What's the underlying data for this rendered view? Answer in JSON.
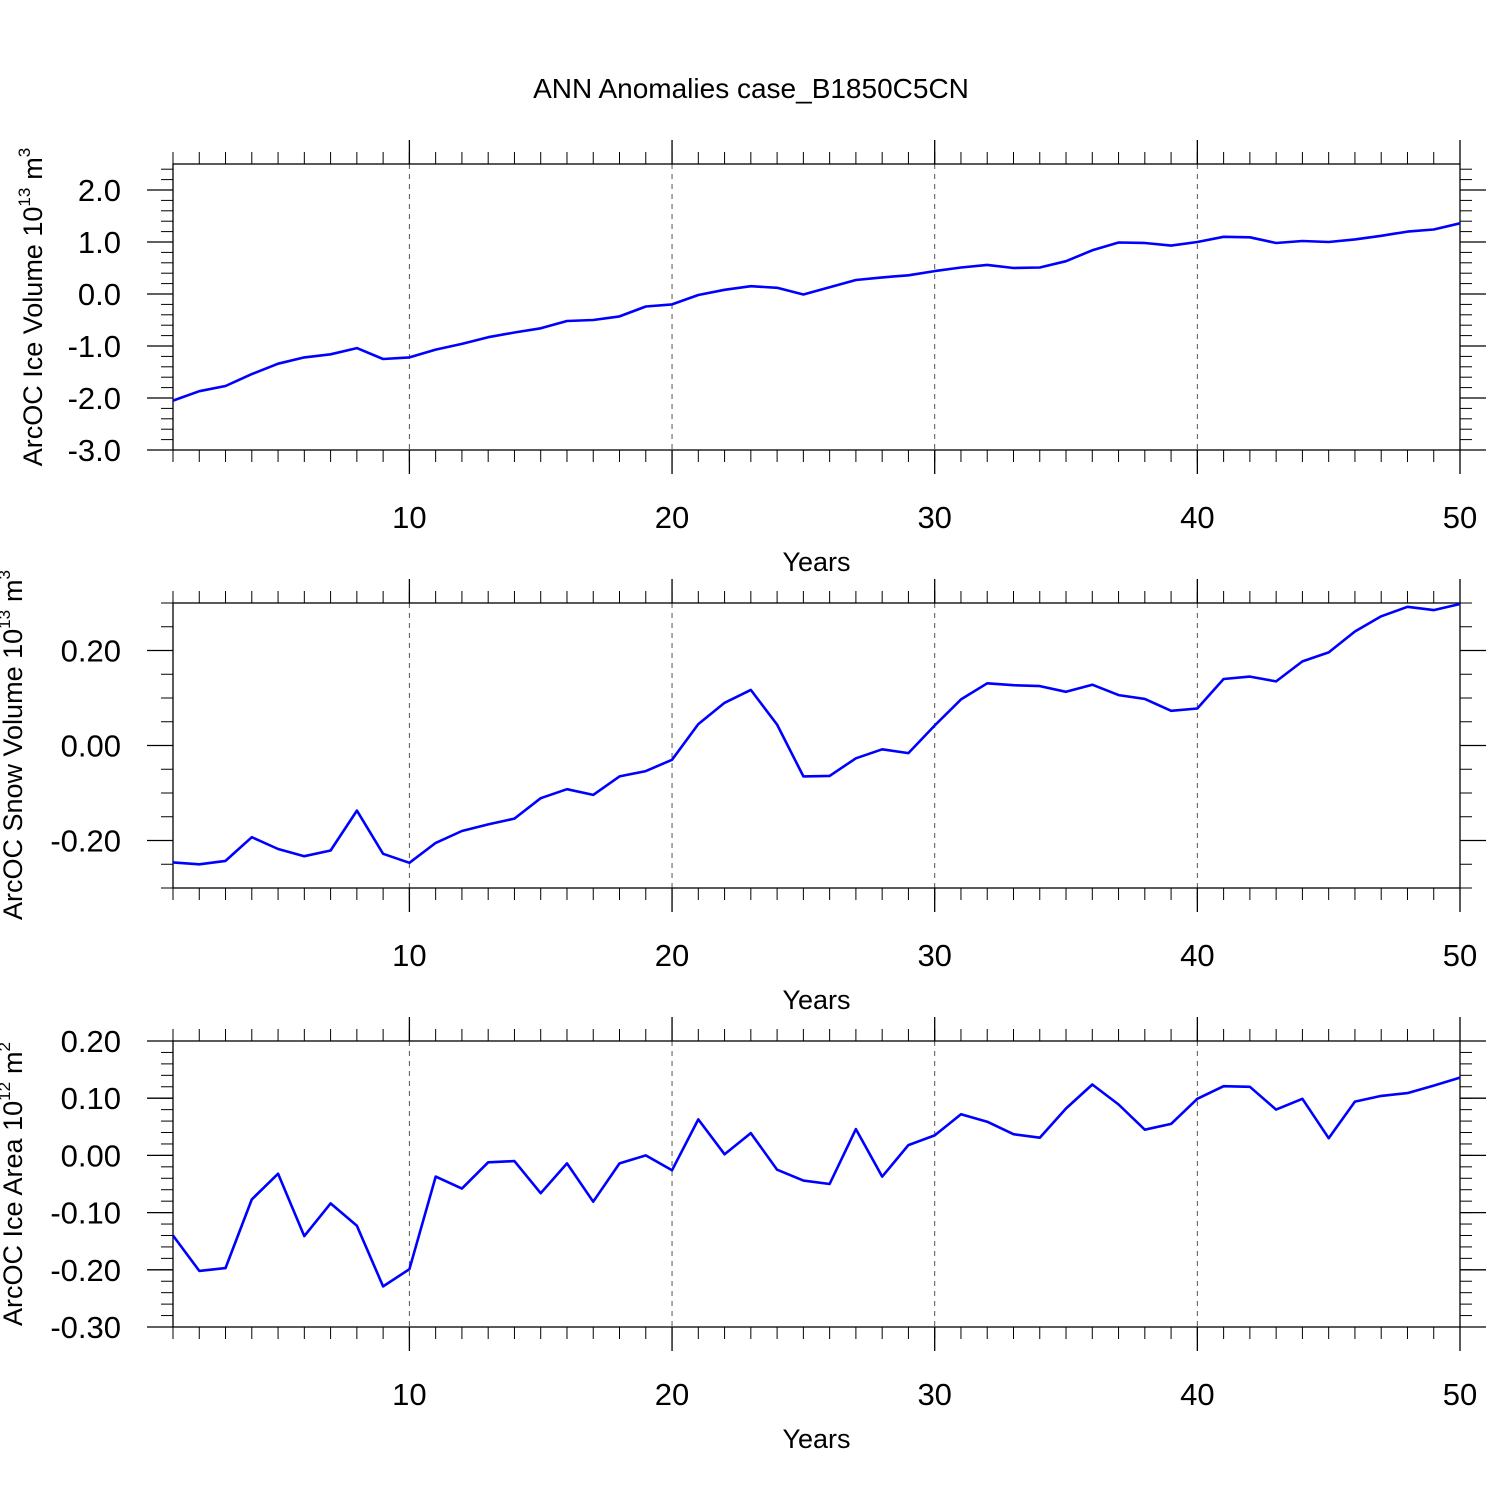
{
  "title": "ANN Anomalies case_B1850C5CN",
  "chart_data": [
    {
      "type": "line",
      "ylabel": "ArcOC Ice Volume 10",
      "ylabel_exponent": "13",
      "ylabel_unit": "m",
      "ylabel_unit_exponent": "3",
      "xlabel": "Years",
      "xlim": [
        1,
        50
      ],
      "ylim": [
        -3.0,
        2.5
      ],
      "x_ticks": [
        10,
        20,
        30,
        40,
        50
      ],
      "x_tick_labels": [
        "10",
        "20",
        "30",
        "40",
        "50"
      ],
      "y_ticks": [
        2.0,
        1.0,
        0.0,
        -1.0,
        -2.0,
        -3.0
      ],
      "y_tick_labels": [
        "2.0",
        "1.0",
        "0.0",
        "-1.0",
        "-2.0",
        "-3.0"
      ],
      "grid": "dashed vertical at major x ticks",
      "line_color": "#0000ff",
      "x": [
        1,
        2,
        3,
        4,
        5,
        6,
        7,
        8,
        9,
        10,
        11,
        12,
        13,
        14,
        15,
        16,
        17,
        18,
        19,
        20,
        21,
        22,
        23,
        24,
        25,
        26,
        27,
        28,
        29,
        30,
        31,
        32,
        33,
        34,
        35,
        36,
        37,
        38,
        39,
        40,
        41,
        42,
        43,
        44,
        45,
        46,
        47,
        48,
        49,
        50
      ],
      "values": [
        -2.05,
        -1.87,
        -1.77,
        -1.54,
        -1.34,
        -1.22,
        -1.16,
        -1.04,
        -1.25,
        -1.22,
        -1.07,
        -0.96,
        -0.83,
        -0.74,
        -0.66,
        -0.52,
        -0.5,
        -0.43,
        -0.24,
        -0.2,
        -0.02,
        0.08,
        0.15,
        0.12,
        -0.01,
        0.13,
        0.27,
        0.32,
        0.36,
        0.44,
        0.51,
        0.56,
        0.5,
        0.51,
        0.63,
        0.84,
        0.99,
        0.98,
        0.93,
        1.0,
        1.1,
        1.09,
        0.98,
        1.02,
        1.0,
        1.05,
        1.12,
        1.2,
        1.24,
        1.36
      ]
    },
    {
      "type": "line",
      "ylabel": "ArcOC Snow Volume 10",
      "ylabel_exponent": "13",
      "ylabel_unit": "m",
      "ylabel_unit_exponent": "3",
      "xlabel": "Years",
      "xlim": [
        1,
        50
      ],
      "ylim": [
        -0.3,
        0.3
      ],
      "x_ticks": [
        10,
        20,
        30,
        40,
        50
      ],
      "x_tick_labels": [
        "10",
        "20",
        "30",
        "40",
        "50"
      ],
      "y_ticks": [
        0.2,
        0.0,
        -0.2
      ],
      "y_tick_labels": [
        "0.20",
        "0.00",
        "-0.20"
      ],
      "grid": "dashed vertical at major x ticks",
      "line_color": "#0000ff",
      "x": [
        1,
        2,
        3,
        4,
        5,
        6,
        7,
        8,
        9,
        10,
        11,
        12,
        13,
        14,
        15,
        16,
        17,
        18,
        19,
        20,
        21,
        22,
        23,
        24,
        25,
        26,
        27,
        28,
        29,
        30,
        31,
        32,
        33,
        34,
        35,
        36,
        37,
        38,
        39,
        40,
        41,
        42,
        43,
        44,
        45,
        46,
        47,
        48,
        49,
        50
      ],
      "values": [
        -0.246,
        -0.25,
        -0.243,
        -0.193,
        -0.218,
        -0.233,
        -0.221,
        -0.137,
        -0.228,
        -0.247,
        -0.205,
        -0.18,
        -0.166,
        -0.154,
        -0.111,
        -0.092,
        -0.104,
        -0.065,
        -0.054,
        -0.03,
        0.045,
        0.09,
        0.117,
        0.044,
        -0.065,
        -0.064,
        -0.027,
        -0.008,
        -0.016,
        0.042,
        0.097,
        0.131,
        0.127,
        0.125,
        0.113,
        0.128,
        0.106,
        0.098,
        0.073,
        0.078,
        0.14,
        0.145,
        0.135,
        0.177,
        0.196,
        0.24,
        0.272,
        0.292,
        0.285,
        0.298
      ]
    },
    {
      "type": "line",
      "ylabel": "ArcOC Ice Area 10",
      "ylabel_exponent": "12",
      "ylabel_unit": "m",
      "ylabel_unit_exponent": "2",
      "xlabel": "Years",
      "xlim": [
        1,
        50
      ],
      "ylim": [
        -0.3,
        0.2
      ],
      "x_ticks": [
        10,
        20,
        30,
        40,
        50
      ],
      "x_tick_labels": [
        "10",
        "20",
        "30",
        "40",
        "50"
      ],
      "y_ticks": [
        0.2,
        0.1,
        0.0,
        -0.1,
        -0.2,
        -0.3
      ],
      "y_tick_labels": [
        "0.20",
        "0.10",
        "0.00",
        "-0.10",
        "-0.20",
        "-0.30"
      ],
      "grid": "dashed vertical at major x ticks",
      "line_color": "#0000ff",
      "x": [
        1,
        2,
        3,
        4,
        5,
        6,
        7,
        8,
        9,
        10,
        11,
        12,
        13,
        14,
        15,
        16,
        17,
        18,
        19,
        20,
        21,
        22,
        23,
        24,
        25,
        26,
        27,
        28,
        29,
        30,
        31,
        32,
        33,
        34,
        35,
        36,
        37,
        38,
        39,
        40,
        41,
        42,
        43,
        44,
        45,
        46,
        47,
        48,
        49,
        50
      ],
      "values": [
        -0.14,
        -0.202,
        -0.197,
        -0.077,
        -0.032,
        -0.141,
        -0.084,
        -0.123,
        -0.229,
        -0.199,
        -0.037,
        -0.058,
        -0.012,
        -0.01,
        -0.066,
        -0.014,
        -0.081,
        -0.014,
        0.0,
        -0.026,
        0.063,
        0.002,
        0.039,
        -0.025,
        -0.044,
        -0.05,
        0.046,
        -0.037,
        0.018,
        0.035,
        0.072,
        0.059,
        0.037,
        0.031,
        0.082,
        0.124,
        0.089,
        0.045,
        0.055,
        0.099,
        0.121,
        0.12,
        0.08,
        0.099,
        0.03,
        0.094,
        0.104,
        0.109,
        0.122,
        0.136
      ]
    }
  ]
}
